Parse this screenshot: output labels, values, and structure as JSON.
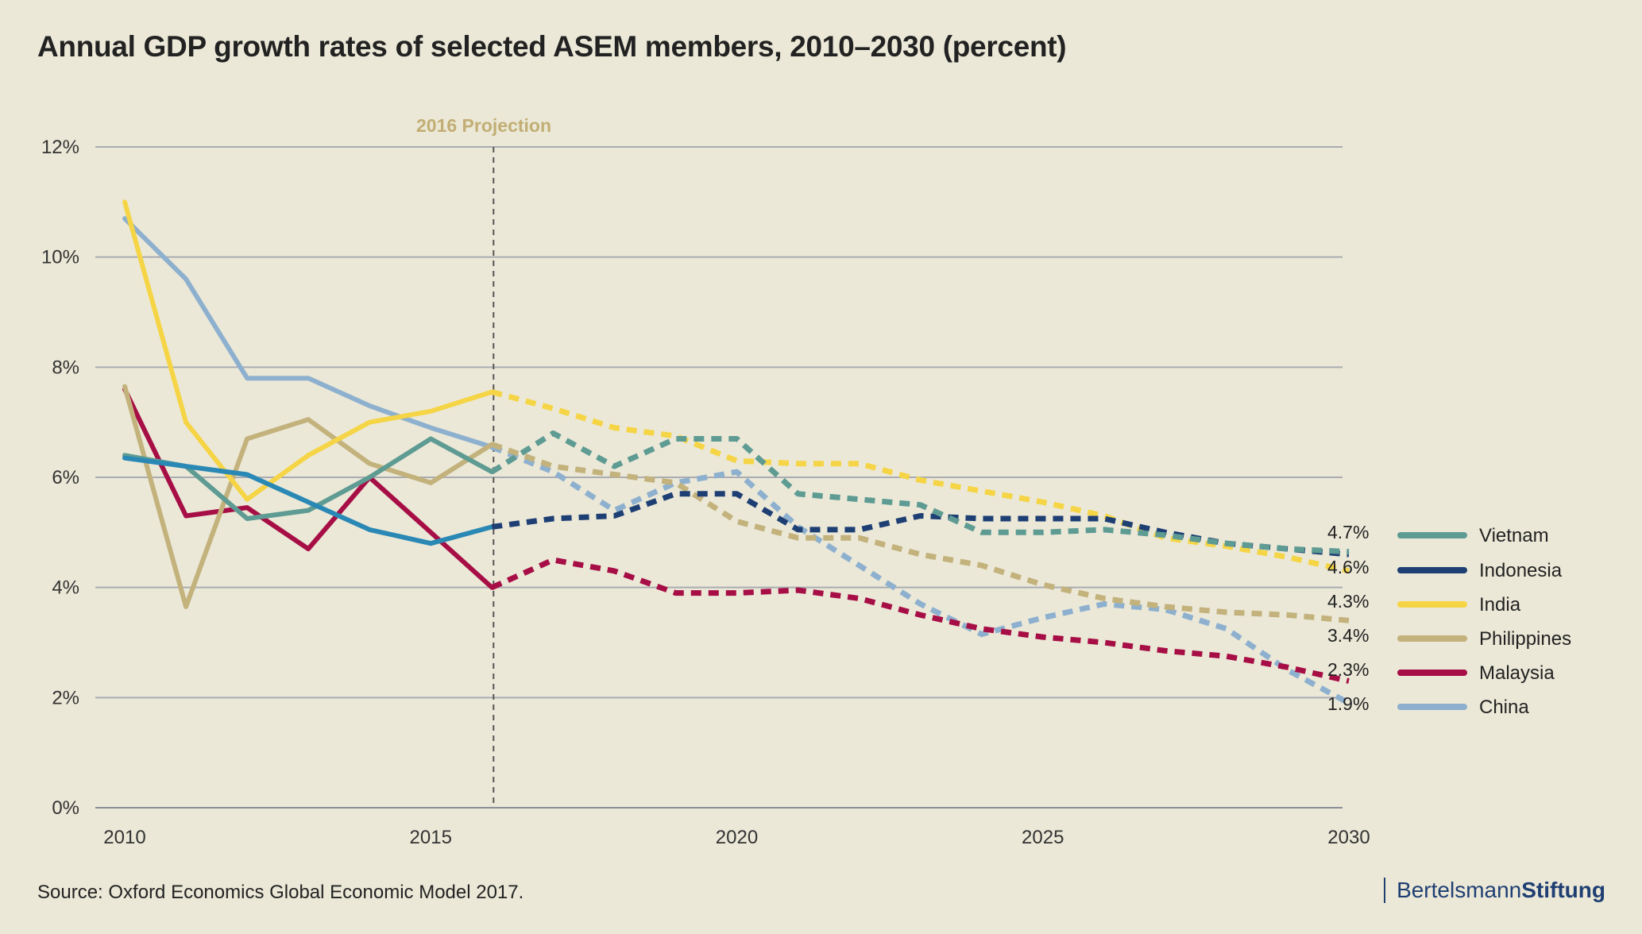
{
  "title": "Annual GDP growth rates of selected ASEM members, 2010–2030 (percent)",
  "source": "Source: Oxford Economics Global Economic Model 2017.",
  "brand": {
    "part1": "Bertelsmann",
    "part2": "Stiftung"
  },
  "chart_data": {
    "type": "line",
    "title": "Annual GDP growth rates of selected ASEM members, 2010–2030 (percent)",
    "xlim": [
      2010,
      2030
    ],
    "ylim": [
      0,
      12
    ],
    "x_ticks": [
      "2010",
      "2015",
      "2020",
      "2025",
      "2030"
    ],
    "x_tick_values": [
      2010,
      2015,
      2020,
      2025,
      2030
    ],
    "y_ticks": [
      "0%",
      "2%",
      "4%",
      "6%",
      "8%",
      "10%",
      "12%"
    ],
    "y_tick_values": [
      0,
      2,
      4,
      6,
      8,
      10,
      12
    ],
    "grid": "horizontal",
    "projection_year": 2016,
    "projection_label": "2016 Projection",
    "legend_placement": "right",
    "x": [
      2010,
      2011,
      2012,
      2013,
      2014,
      2015,
      2016,
      2017,
      2018,
      2019,
      2020,
      2021,
      2022,
      2023,
      2024,
      2025,
      2026,
      2027,
      2028,
      2029,
      2030
    ],
    "series": [
      {
        "name": "Vietnam",
        "color": "#5e9b93",
        "end_label": "4.7%",
        "values": [
          6.4,
          6.2,
          5.25,
          5.4,
          6.0,
          6.7,
          6.1,
          6.8,
          6.2,
          6.7,
          6.7,
          5.7,
          5.6,
          5.5,
          5.0,
          5.0,
          5.05,
          4.95,
          4.8,
          4.7,
          4.65
        ]
      },
      {
        "name": "Indonesia",
        "color": "#1e3f74",
        "end_label": "4.6%",
        "values": [
          null,
          null,
          null,
          null,
          null,
          null,
          5.1,
          5.25,
          5.3,
          5.7,
          5.7,
          5.05,
          5.05,
          5.3,
          5.25,
          5.25,
          5.25,
          5.0,
          4.8,
          4.7,
          4.6
        ]
      },
      {
        "name": "India",
        "color": "#f5d546",
        "end_label": "4.3%",
        "values": [
          11.0,
          7.0,
          5.6,
          6.4,
          7.0,
          7.2,
          7.55,
          7.25,
          6.9,
          6.75,
          6.3,
          6.25,
          6.25,
          5.95,
          5.75,
          5.55,
          5.3,
          4.9,
          4.75,
          4.55,
          4.3
        ]
      },
      {
        "name": "Philippines",
        "color": "#c3b27c",
        "end_label": "3.4%",
        "values": [
          7.65,
          3.65,
          6.7,
          7.05,
          6.25,
          5.9,
          6.6,
          6.2,
          6.05,
          5.9,
          5.2,
          4.9,
          4.9,
          4.6,
          4.4,
          4.05,
          3.8,
          3.65,
          3.55,
          3.5,
          3.4
        ]
      },
      {
        "name": "Malaysia",
        "color": "#a60e45",
        "end_label": "2.3%",
        "values": [
          7.6,
          5.3,
          5.45,
          4.7,
          6.0,
          5.0,
          4.0,
          4.5,
          4.3,
          3.9,
          3.9,
          3.95,
          3.8,
          3.5,
          3.25,
          3.1,
          3.0,
          2.85,
          2.75,
          2.55,
          2.3
        ]
      },
      {
        "name": "China",
        "color": "#8eb0cf",
        "end_label": "1.9%",
        "values": [
          10.7,
          9.6,
          7.8,
          7.8,
          7.3,
          6.9,
          6.55,
          6.1,
          5.4,
          5.9,
          6.1,
          5.1,
          4.4,
          3.7,
          3.15,
          3.45,
          3.7,
          3.6,
          3.25,
          2.5,
          1.9
        ]
      }
    ],
    "extra_lines": [
      {
        "name": "China (alternate solid segment)",
        "color": "#2a88b5",
        "values": [
          6.35,
          6.2,
          6.05,
          5.55,
          5.05,
          4.8,
          5.1
        ]
      }
    ]
  }
}
